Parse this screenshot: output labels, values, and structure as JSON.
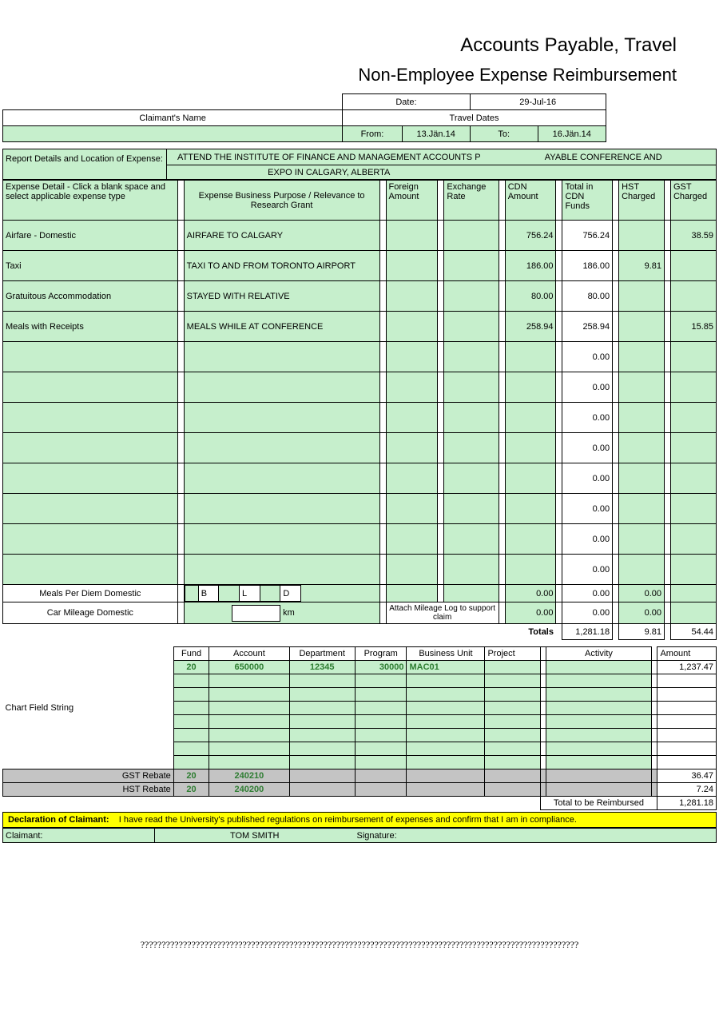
{
  "colors": {
    "green": "#c6efcc",
    "yellow": "#ffff00",
    "gray": "#c4c4c4",
    "green_text": "#2e7d32"
  },
  "title1": "Accounts Payable, Travel",
  "title2": "Non-Employee Expense Reimbursement",
  "hdr": {
    "date_label": "Date:",
    "date_value": "29-Jul-16",
    "claimant_label": "Claimant's Name",
    "travel_dates_label": "Travel Dates",
    "from_label": "From:",
    "from_value": "13.Jän.14",
    "to_label": "To:",
    "to_value": "16.Jän.14"
  },
  "report": {
    "label": "Report Details and Location of Expense:",
    "line1a": "ATTEND THE INSTITUTE OF FINANCE AND MANAGEMENT ACCOUNTS P",
    "line1b": "AYABLE CONFERENCE AND",
    "line2": "EXPO IN CALGARY, ALBERTA"
  },
  "cols": {
    "detail": "Expense Detail - Click a blank space and select applicable expense type",
    "purpose": "Expense Business Purpose / Relevance to Research Grant",
    "foreign": "Foreign Amount",
    "rate": "Exchange Rate",
    "cdn": "CDN Amount",
    "total": "Total in CDN Funds",
    "hst": "HST Charged",
    "gst": "GST Charged"
  },
  "rows": [
    {
      "type": "Airfare - Domestic",
      "purpose": "AIRFARE TO CALGARY",
      "foreign": "",
      "rate": "",
      "cdn": "756.24",
      "total": "756.24",
      "hst": "",
      "gst": "38.59"
    },
    {
      "type": "Taxi",
      "purpose": "TAXI TO AND FROM TORONTO AIRPORT",
      "foreign": "",
      "rate": "",
      "cdn": "186.00",
      "total": "186.00",
      "hst": "9.81",
      "gst": ""
    },
    {
      "type": "Gratuitous Accommodation",
      "purpose": "STAYED WITH RELATIVE",
      "foreign": "",
      "rate": "",
      "cdn": "80.00",
      "total": "80.00",
      "hst": "",
      "gst": ""
    },
    {
      "type": "Meals with Receipts",
      "purpose": " MEALS WHILE AT CONFERENCE",
      "foreign": "",
      "rate": "",
      "cdn": "258.94",
      "total": "258.94",
      "hst": "",
      "gst": "15.85"
    },
    {
      "type": "",
      "purpose": "",
      "foreign": "",
      "rate": "",
      "cdn": "",
      "total": "0.00",
      "hst": "",
      "gst": ""
    },
    {
      "type": "",
      "purpose": "",
      "foreign": "",
      "rate": "",
      "cdn": "",
      "total": "0.00",
      "hst": "",
      "gst": ""
    },
    {
      "type": "",
      "purpose": "",
      "foreign": "",
      "rate": "",
      "cdn": "",
      "total": "0.00",
      "hst": "",
      "gst": ""
    },
    {
      "type": "",
      "purpose": "",
      "foreign": "",
      "rate": "",
      "cdn": "",
      "total": "0.00",
      "hst": "",
      "gst": ""
    },
    {
      "type": "",
      "purpose": "",
      "foreign": "",
      "rate": "",
      "cdn": "",
      "total": "0.00",
      "hst": "",
      "gst": ""
    },
    {
      "type": "",
      "purpose": "",
      "foreign": "",
      "rate": "",
      "cdn": "",
      "total": "0.00",
      "hst": "",
      "gst": ""
    },
    {
      "type": "",
      "purpose": "",
      "foreign": "",
      "rate": "",
      "cdn": "",
      "total": "0.00",
      "hst": "",
      "gst": ""
    },
    {
      "type": "",
      "purpose": "",
      "foreign": "",
      "rate": "",
      "cdn": "",
      "total": "0.00",
      "hst": "",
      "gst": ""
    }
  ],
  "perdiem": {
    "label": "Meals Per Diem Domestic",
    "b": "B",
    "l": "L",
    "d": "D",
    "cdn": "0.00",
    "total": "0.00",
    "hst": "0.00"
  },
  "mileage": {
    "label": "Car Mileage Domestic",
    "km": "km",
    "note": "Attach Mileage Log to support claim",
    "cdn": "0.00",
    "total": "0.00",
    "hst": "0.00"
  },
  "totals": {
    "label": "Totals",
    "total": "1,281.18",
    "hst": "9.81",
    "gst": "54.44"
  },
  "chart": {
    "label": "Chart Field String",
    "headers": [
      "Fund",
      "Account",
      "Department",
      "Program",
      "Business Unit",
      "Project",
      "Activity",
      "Amount"
    ],
    "row1": {
      "fund": "20",
      "account": "650000",
      "dept": "12345",
      "prog": "30000",
      "bu": "MAC01",
      "proj": "",
      "activity": "",
      "amount": "1,237.47"
    },
    "gst_rebate": {
      "label": "GST Rebate",
      "fund": "20",
      "account": "240210",
      "amount": "36.47"
    },
    "hst_rebate": {
      "label": "HST Rebate",
      "fund": "20",
      "account": "240200",
      "amount": "7.24"
    },
    "total_reimb_label": "Total to be Reimbursed",
    "total_reimb": "1,281.18"
  },
  "decl": {
    "label": "Declaration of Claimant:",
    "text": "I have read the University's published regulations on reimbursement of expenses and confirm that I am in compliance."
  },
  "sig": {
    "claimant_label": "Claimant:",
    "claimant_name": "TOM SMITH",
    "signature_label": "Signature:"
  },
  "footer": "???????????????????????????????????????????????????????????????????????????????????????????????????????"
}
